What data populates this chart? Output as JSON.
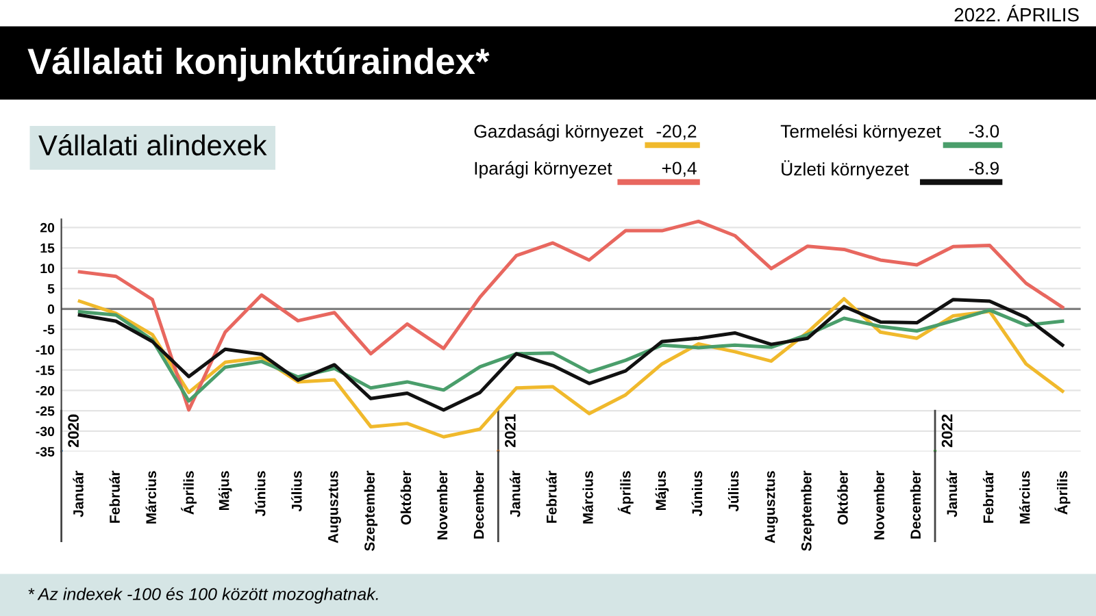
{
  "chart_data": {
    "type": "line",
    "title": "Vállalati konjunktúraindex*",
    "subtitle": "Vállalati alindexek",
    "categories": [
      "Január",
      "Február",
      "Március",
      "Április",
      "Május",
      "Június",
      "Július",
      "Augusztus",
      "Szeptember",
      "Október",
      "November",
      "December",
      "Január",
      "Február",
      "Március",
      "Április",
      "Május",
      "Június",
      "Július",
      "Augusztus",
      "Szeptember",
      "Október",
      "November",
      "December",
      "Január",
      "Február",
      "Március",
      "Április"
    ],
    "series": [
      {
        "name": "Gazdasági környezet",
        "color": "#f0b92c",
        "values": [
          1.9,
          -1.1,
          -6.3,
          -20.5,
          -13.1,
          -12,
          -17.9,
          -17.4,
          -28.9,
          -28.1,
          -31.4,
          -29.5,
          -19.4,
          -19.1,
          -25.7,
          -21.1,
          -13.5,
          -8.6,
          -10.5,
          -12.8,
          -5.7,
          2.5,
          -5.7,
          -7.2,
          -1.7,
          -0.6,
          -13.5,
          -20.2
        ]
      },
      {
        "name": "Iparági környezet",
        "color": "#e8675f",
        "values": [
          9.1,
          8.0,
          2.3,
          -24.8,
          -5.7,
          3.4,
          -2.9,
          -0.9,
          -11,
          -3.7,
          -9.7,
          2.9,
          13.1,
          16.2,
          12,
          19.2,
          19.2,
          21.5,
          18,
          9.9,
          15.4,
          14.6,
          12,
          10.8,
          15.3,
          15.6,
          6.3,
          0.4
        ]
      },
      {
        "name": "Termelési környezet",
        "color": "#4a9e6b",
        "values": [
          -0.7,
          -1.5,
          -7.6,
          -22.6,
          -14.3,
          -12.9,
          -16.7,
          -14.6,
          -19.4,
          -17.9,
          -19.9,
          -14.2,
          -11,
          -10.8,
          -15.5,
          -12.6,
          -8.9,
          -9.5,
          -8.9,
          -9.4,
          -6.3,
          -2.3,
          -4.3,
          -5.4,
          -2.9,
          -0.3,
          -4,
          -3.0
        ]
      },
      {
        "name": "Üzleti környezet",
        "color": "#111111",
        "values": [
          -1.5,
          -3,
          -8,
          -16.6,
          -9.9,
          -11.1,
          -17.5,
          -13.7,
          -22,
          -20.7,
          -24.8,
          -20.5,
          -11,
          -13.9,
          -18.3,
          -15.2,
          -8,
          -7.2,
          -5.9,
          -8.7,
          -7.2,
          0.6,
          -3.2,
          -3.4,
          2.3,
          1.9,
          -2.1,
          -8.9
        ]
      }
    ],
    "ylim": [
      -35,
      22
    ],
    "yticks": [
      -35,
      -30,
      -25,
      -20,
      -15,
      -10,
      -5,
      0,
      5,
      10,
      15,
      20
    ],
    "ref_lines": [
      {
        "axis": "y",
        "value": 0,
        "color": "#808080"
      }
    ],
    "grid": "y",
    "legend": "top",
    "marker": "none",
    "line_style": "solid",
    "annotations": [
      "2022. ÁPRILIS",
      "2020",
      "2021",
      "2022",
      "-20,2",
      "+0,4",
      "-3.0",
      "-8.9",
      "* Az indexek -100 és 100 között mozoghatnak."
    ]
  }
}
